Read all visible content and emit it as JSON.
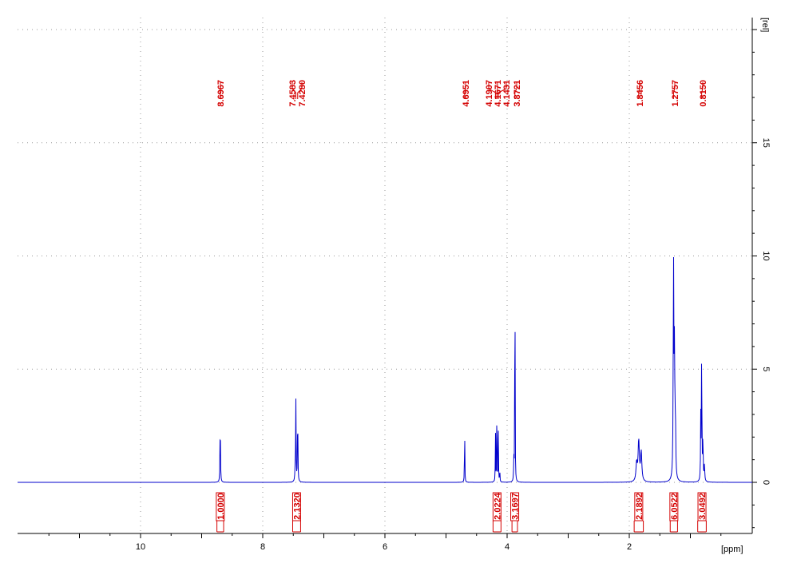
{
  "chart_data": {
    "type": "line",
    "title": "",
    "xlabel": "[ppm]",
    "ylabel": "[rel]",
    "xlim": [
      11.98,
      0.0
    ],
    "ylim": [
      -2.2,
      20.5
    ],
    "x_ticks": [
      "10",
      "8",
      "6",
      "4",
      "2"
    ],
    "x_tick_values": [
      10,
      8,
      6,
      4,
      2
    ],
    "y_ticks": [
      "0",
      "5",
      "10",
      "15"
    ],
    "y_tick_values": [
      0,
      5,
      10,
      15
    ],
    "grid": true,
    "colors": {
      "spectrum": "#0000cc",
      "annotation": "#d40000",
      "grid": "#999999"
    },
    "series": [
      {
        "peaks": [
          {
            "ppm": 8.6967,
            "height": 2.5,
            "width": 0.004
          },
          {
            "ppm": 8.6917,
            "height": 0.6,
            "width": 0.004
          },
          {
            "ppm": 7.4583,
            "height": 3.7,
            "width": 0.004
          },
          {
            "ppm": 7.428,
            "height": 3.4,
            "width": 0.004
          },
          {
            "ppm": 7.47,
            "height": 0.4,
            "width": 0.006
          },
          {
            "ppm": 4.6951,
            "height": 2.9,
            "width": 0.003
          },
          {
            "ppm": 4.1907,
            "height": 2.4,
            "width": 0.003
          },
          {
            "ppm": 4.1671,
            "height": 4.6,
            "width": 0.003
          },
          {
            "ppm": 4.1431,
            "height": 2.3,
            "width": 0.003
          },
          {
            "ppm": 4.12,
            "height": 0.6,
            "width": 0.003
          },
          {
            "ppm": 3.8721,
            "height": 15.0,
            "width": 0.0025
          },
          {
            "ppm": 3.89,
            "height": 1.0,
            "width": 0.004
          },
          {
            "ppm": 1.8456,
            "height": 1.8,
            "width": 0.012
          },
          {
            "ppm": 1.805,
            "height": 1.3,
            "width": 0.012
          },
          {
            "ppm": 1.88,
            "height": 0.8,
            "width": 0.012
          },
          {
            "ppm": 1.2757,
            "height": 9.4,
            "width": 0.006
          },
          {
            "ppm": 1.26,
            "height": 5.5,
            "width": 0.006
          },
          {
            "ppm": 1.245,
            "height": 2.4,
            "width": 0.006
          },
          {
            "ppm": 0.815,
            "height": 6.1,
            "width": 0.004
          },
          {
            "ppm": 0.83,
            "height": 2.8,
            "width": 0.004
          },
          {
            "ppm": 0.795,
            "height": 1.9,
            "width": 0.005
          },
          {
            "ppm": 0.77,
            "height": 0.7,
            "width": 0.006
          }
        ]
      }
    ],
    "peak_labels": [
      {
        "text": "8.6967",
        "ppm": 8.6967
      },
      {
        "text": "7.4583",
        "ppm": 7.4583
      },
      {
        "text": "7.4280",
        "ppm": 7.428
      },
      {
        "text": "4.6951",
        "ppm": 4.6951
      },
      {
        "text": "4.1907",
        "ppm": 4.1907
      },
      {
        "text": "4.1671",
        "ppm": 4.1671
      },
      {
        "text": "4.1431",
        "ppm": 4.1431
      },
      {
        "text": "3.8721",
        "ppm": 3.8721
      },
      {
        "text": "1.8456",
        "ppm": 1.8456
      },
      {
        "text": "1.2757",
        "ppm": 1.2757
      },
      {
        "text": "0.8150",
        "ppm": 0.815
      }
    ],
    "integrals": [
      {
        "text": "1.0000",
        "from": 8.75,
        "to": 8.64
      },
      {
        "text": "2.1320",
        "from": 7.51,
        "to": 7.38
      },
      {
        "text": "2.0224",
        "from": 4.23,
        "to": 4.1
      },
      {
        "text": "3.1697",
        "from": 3.92,
        "to": 3.83
      },
      {
        "text": "2.1892",
        "from": 1.92,
        "to": 1.77
      },
      {
        "text": "6.0522",
        "from": 1.33,
        "to": 1.21
      },
      {
        "text": "3.0492",
        "from": 0.88,
        "to": 0.74
      }
    ]
  }
}
